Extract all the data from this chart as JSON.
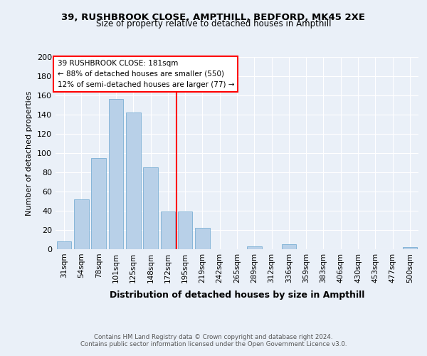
{
  "title_line1": "39, RUSHBROOK CLOSE, AMPTHILL, BEDFORD, MK45 2XE",
  "title_line2": "Size of property relative to detached houses in Ampthill",
  "xlabel": "Distribution of detached houses by size in Ampthill",
  "ylabel": "Number of detached properties",
  "bar_labels": [
    "31sqm",
    "54sqm",
    "78sqm",
    "101sqm",
    "125sqm",
    "148sqm",
    "172sqm",
    "195sqm",
    "219sqm",
    "242sqm",
    "265sqm",
    "289sqm",
    "312sqm",
    "336sqm",
    "359sqm",
    "383sqm",
    "406sqm",
    "430sqm",
    "453sqm",
    "477sqm",
    "500sqm"
  ],
  "bar_values": [
    8,
    52,
    95,
    156,
    142,
    85,
    39,
    39,
    22,
    0,
    0,
    3,
    0,
    5,
    0,
    0,
    0,
    0,
    0,
    0,
    2
  ],
  "bar_color": "#b8d0e8",
  "bar_edgecolor": "#7aafd4",
  "vline_color": "red",
  "vline_pos": 6.5,
  "annotation_title": "39 RUSHBROOK CLOSE: 181sqm",
  "annotation_line1": "← 88% of detached houses are smaller (550)",
  "annotation_line2": "12% of semi-detached houses are larger (77) →",
  "annotation_box_color": "white",
  "annotation_box_edgecolor": "red",
  "ylim": [
    0,
    200
  ],
  "yticks": [
    0,
    20,
    40,
    60,
    80,
    100,
    120,
    140,
    160,
    180,
    200
  ],
  "background_color": "#eaf0f8",
  "grid_color": "#ffffff",
  "footer_line1": "Contains HM Land Registry data © Crown copyright and database right 2024.",
  "footer_line2": "Contains public sector information licensed under the Open Government Licence v3.0."
}
